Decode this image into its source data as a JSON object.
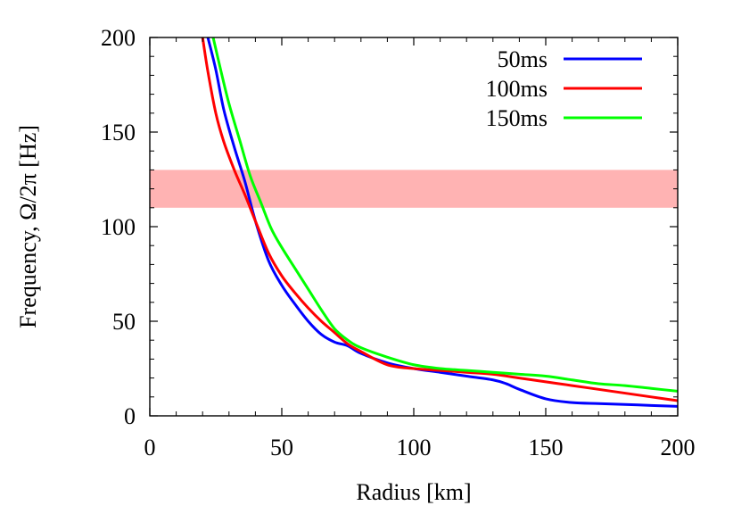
{
  "chart_data": {
    "type": "line",
    "title": "",
    "xlabel": "Radius [km]",
    "ylabel": "Frequency, Ω/2π  [Hz]",
    "xlim": [
      0,
      200
    ],
    "ylim": [
      0,
      200
    ],
    "xticks": [
      0,
      50,
      100,
      150,
      200
    ],
    "yticks": [
      0,
      50,
      100,
      150,
      200
    ],
    "grid": false,
    "legend_position": "top-right",
    "band": {
      "y_from": 110,
      "y_to": 130,
      "color": "#ffb3b3"
    },
    "series": [
      {
        "name": "50ms",
        "color": "#0000ff",
        "x": [
          22,
          25,
          28,
          32,
          36,
          40,
          45,
          50,
          55,
          60,
          65,
          70,
          75,
          80,
          90,
          100,
          110,
          120,
          130,
          135,
          140,
          150,
          160,
          170,
          180,
          190,
          200
        ],
        "y": [
          200,
          183,
          162,
          142,
          124,
          103,
          82,
          69,
          59,
          50,
          43,
          39,
          37,
          33,
          28,
          25,
          23,
          21,
          19,
          17,
          14,
          9,
          7,
          6.5,
          6,
          5.5,
          5
        ]
      },
      {
        "name": "100ms",
        "color": "#ff0000",
        "x": [
          20,
          22,
          25,
          28,
          32,
          36,
          40,
          45,
          50,
          55,
          60,
          65,
          70,
          75,
          80,
          90,
          100,
          110,
          120,
          130,
          140,
          150,
          160,
          170,
          180,
          190,
          200
        ],
        "y": [
          200,
          182,
          160,
          145,
          130,
          117,
          103,
          86,
          74,
          65,
          57,
          50,
          44,
          38,
          34,
          27,
          25,
          24,
          23,
          22,
          20,
          18,
          16,
          14,
          12,
          10,
          8
        ]
      },
      {
        "name": "150ms",
        "color": "#00ff00",
        "x": [
          24,
          27,
          30,
          34,
          38,
          42,
          46,
          50,
          55,
          60,
          65,
          70,
          75,
          80,
          90,
          100,
          110,
          120,
          130,
          140,
          150,
          160,
          170,
          180,
          190,
          200
        ],
        "y": [
          200,
          182,
          165,
          146,
          127,
          113,
          99,
          89,
          78,
          67,
          56,
          46,
          40,
          36,
          31,
          27,
          25,
          24,
          23,
          22,
          21,
          19,
          17,
          16,
          14.5,
          13
        ]
      }
    ]
  }
}
